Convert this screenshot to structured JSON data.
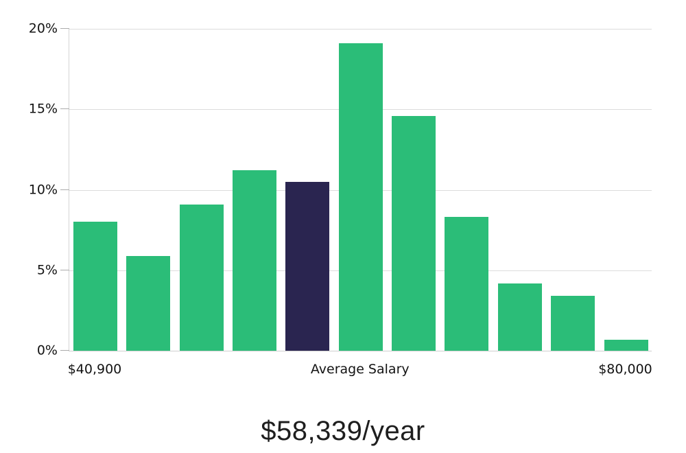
{
  "chart_data": {
    "type": "bar",
    "subtype": "salary-distribution-histogram",
    "values": [
      8.0,
      5.9,
      9.1,
      11.2,
      10.5,
      19.1,
      14.6,
      8.3,
      4.2,
      3.4,
      0.7
    ],
    "highlighted_bar_index": 4,
    "x_tick_labels": [
      {
        "index": 0,
        "label": "$40,900"
      },
      {
        "index": 5,
        "label": "Average Salary"
      },
      {
        "index": 10,
        "label": "$80,000"
      }
    ],
    "y_ticks": [
      0,
      5,
      10,
      15,
      20
    ],
    "y_tick_labels": [
      "0%",
      "5%",
      "10%",
      "15%",
      "20%"
    ],
    "ylim": [
      0,
      20
    ],
    "xlabel": "",
    "ylabel": "",
    "title": "",
    "grid": true,
    "legend": false,
    "caption": "$58,339/year",
    "colors": {
      "bar": "#2bbd78",
      "highlight": "#2a2550",
      "grid": "#dcdcdc",
      "axis": "#cfcfcf",
      "tick": "#ababab",
      "text": "#131313"
    }
  }
}
